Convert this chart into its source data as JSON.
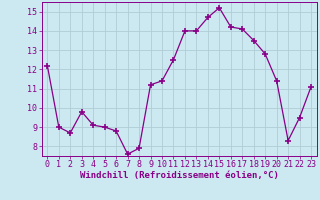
{
  "x": [
    0,
    1,
    2,
    3,
    4,
    5,
    6,
    7,
    8,
    9,
    10,
    11,
    12,
    13,
    14,
    15,
    16,
    17,
    18,
    19,
    20,
    21,
    22,
    23
  ],
  "y": [
    12.2,
    9.0,
    8.7,
    9.8,
    9.1,
    9.0,
    8.8,
    7.6,
    7.9,
    11.2,
    11.4,
    12.5,
    14.0,
    14.0,
    14.7,
    15.2,
    14.2,
    14.1,
    13.5,
    12.8,
    11.4,
    8.3,
    9.5,
    11.1
  ],
  "line_color": "#880088",
  "marker": "+",
  "markersize": 4,
  "linewidth": 0.9,
  "xlabel": "Windchill (Refroidissement éolien,°C)",
  "xlim": [
    -0.5,
    23.5
  ],
  "ylim": [
    7.5,
    15.5
  ],
  "yticks": [
    8,
    9,
    10,
    11,
    12,
    13,
    14,
    15
  ],
  "xticks": [
    0,
    1,
    2,
    3,
    4,
    5,
    6,
    7,
    8,
    9,
    10,
    11,
    12,
    13,
    14,
    15,
    16,
    17,
    18,
    19,
    20,
    21,
    22,
    23
  ],
  "background_color": "#cce8f0",
  "grid_color": "#b0ccd4",
  "tick_color": "#880088",
  "label_color": "#880088",
  "xlabel_fontsize": 6.5,
  "tick_fontsize": 6.0
}
